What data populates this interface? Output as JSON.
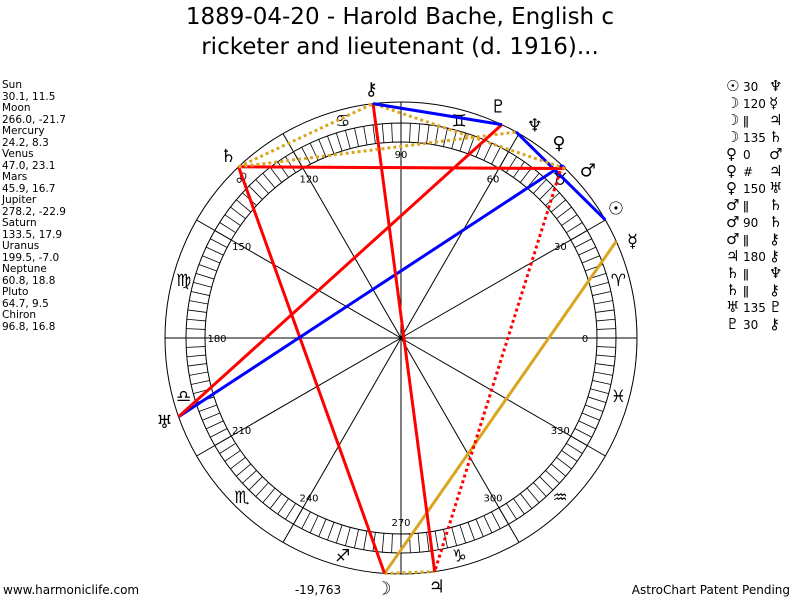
{
  "title": [
    "1889-04-20 - Harold Bache, English c",
    "ricketer and lieutenant (d. 1916)..."
  ],
  "positions": [
    {
      "name": "Sun",
      "value": "30.1, 11.5"
    },
    {
      "name": "Moon",
      "value": "266.0, -21.7"
    },
    {
      "name": "Mercury",
      "value": "24.2, 8.3"
    },
    {
      "name": "Venus",
      "value": "47.0, 23.1"
    },
    {
      "name": "Mars",
      "value": "45.9, 16.7"
    },
    {
      "name": "Jupiter",
      "value": "278.2, -22.9"
    },
    {
      "name": "Saturn",
      "value": "133.5, 17.9"
    },
    {
      "name": "Uranus",
      "value": "199.5, -7.0"
    },
    {
      "name": "Neptune",
      "value": "60.8, 18.8"
    },
    {
      "name": "Pluto",
      "value": "64.7, 9.5"
    },
    {
      "name": "Chiron",
      "value": "96.8, 16.8"
    }
  ],
  "planets": [
    {
      "key": "sun",
      "glyph": "☉",
      "lon": 30.1
    },
    {
      "key": "moon",
      "glyph": "☽",
      "lon": 266.0
    },
    {
      "key": "mercury",
      "glyph": "☿",
      "lon": 24.2
    },
    {
      "key": "venus",
      "glyph": "♀",
      "lon": 47.0
    },
    {
      "key": "mars",
      "glyph": "♂",
      "lon": 45.9
    },
    {
      "key": "jupiter",
      "glyph": "♃",
      "lon": 278.2
    },
    {
      "key": "saturn",
      "glyph": "♄",
      "lon": 133.5
    },
    {
      "key": "uranus",
      "glyph": "♅",
      "lon": 199.5
    },
    {
      "key": "neptune",
      "glyph": "♆",
      "lon": 60.8
    },
    {
      "key": "pluto",
      "glyph": "♇",
      "lon": 64.7
    },
    {
      "key": "chiron",
      "glyph": "⚷",
      "lon": 96.8
    }
  ],
  "signs": [
    "♈",
    "♉",
    "♊",
    "♋",
    "♌",
    "♍",
    "♎",
    "♏",
    "♐",
    "♑",
    "♒",
    "♓"
  ],
  "degree_labels": [
    "0",
    "30",
    "60",
    "90",
    "120",
    "150",
    "180",
    "210",
    "240",
    "270",
    "300",
    "330"
  ],
  "aspects": [
    {
      "p1": "☉",
      "aspect": "30",
      "p2": "♆",
      "a": "sun",
      "b": "neptune",
      "color": "#0000ff",
      "style": "solid"
    },
    {
      "p1": "☽",
      "aspect": "120",
      "p2": "☿",
      "a": "moon",
      "b": "mercury",
      "color": "#daa520",
      "style": "solid"
    },
    {
      "p1": "☽",
      "aspect": "ǁ",
      "p2": "♃",
      "a": "moon",
      "b": "jupiter",
      "color": "#daa520",
      "style": "dotted"
    },
    {
      "p1": "☽",
      "aspect": "135",
      "p2": "♄",
      "a": "moon",
      "b": "saturn",
      "color": "#ff0000",
      "style": "solid"
    },
    {
      "p1": "♀",
      "aspect": "0",
      "p2": "♂",
      "a": "venus",
      "b": "mars",
      "color": "#0000ff",
      "style": "solid"
    },
    {
      "p1": "♀",
      "aspect": "#",
      "p2": "♃",
      "a": "venus",
      "b": "jupiter",
      "color": "#ff0000",
      "style": "dotted"
    },
    {
      "p1": "♀",
      "aspect": "150",
      "p2": "♅",
      "a": "venus",
      "b": "uranus",
      "color": "#0000ff",
      "style": "solid"
    },
    {
      "p1": "♂",
      "aspect": "ǁ",
      "p2": "♄",
      "a": "mars",
      "b": "saturn",
      "color": "#daa520",
      "style": "dotted"
    },
    {
      "p1": "♂",
      "aspect": "90",
      "p2": "♄",
      "a": "mars",
      "b": "saturn",
      "color": "#ff0000",
      "style": "solid"
    },
    {
      "p1": "♂",
      "aspect": "ǁ",
      "p2": "⚷",
      "a": "mars",
      "b": "chiron",
      "color": "#daa520",
      "style": "dotted"
    },
    {
      "p1": "♃",
      "aspect": "180",
      "p2": "⚷",
      "a": "jupiter",
      "b": "chiron",
      "color": "#ff0000",
      "style": "solid"
    },
    {
      "p1": "♄",
      "aspect": "ǁ",
      "p2": "♆",
      "a": "saturn",
      "b": "neptune",
      "color": "#daa520",
      "style": "dotted"
    },
    {
      "p1": "♄",
      "aspect": "ǁ",
      "p2": "⚷",
      "a": "saturn",
      "b": "chiron",
      "color": "#daa520",
      "style": "dotted"
    },
    {
      "p1": "♅",
      "aspect": "135",
      "p2": "♇",
      "a": "uranus",
      "b": "pluto",
      "color": "#ff0000",
      "style": "solid"
    },
    {
      "p1": "♇",
      "aspect": "30",
      "p2": "⚷",
      "a": "pluto",
      "b": "chiron",
      "color": "#0000ff",
      "style": "solid"
    }
  ],
  "score": "-19,763",
  "footer": {
    "left": "www.harmoniclife.com",
    "right": "AstroChart Patent Pending"
  }
}
